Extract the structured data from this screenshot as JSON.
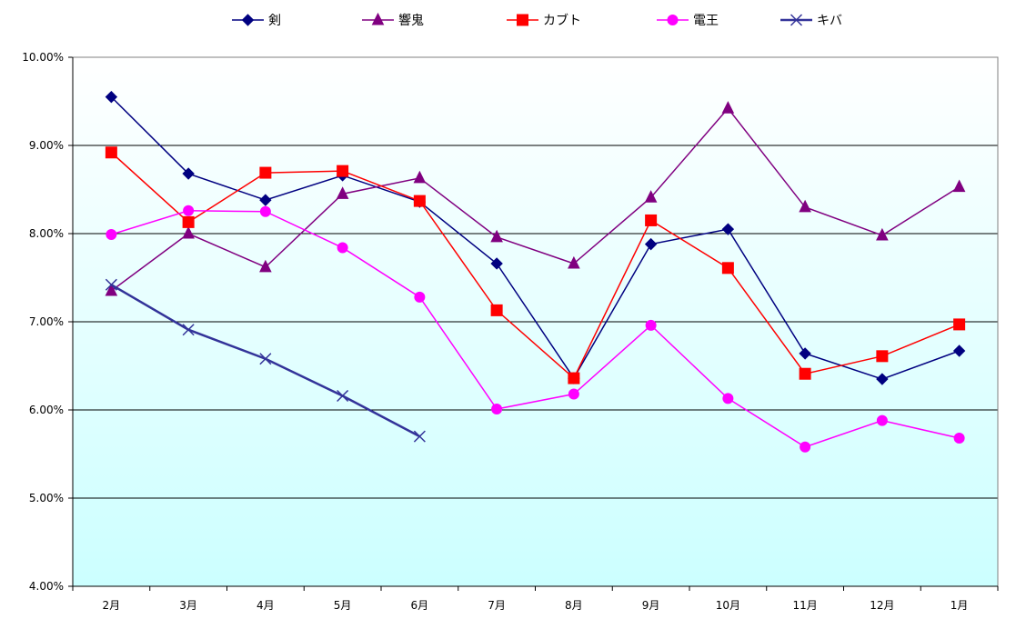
{
  "chart_data": {
    "type": "line",
    "title": "",
    "xlabel": "",
    "ylabel": "",
    "categories": [
      "2月",
      "3月",
      "4月",
      "5月",
      "6月",
      "7月",
      "8月",
      "9月",
      "10月",
      "11月",
      "12月",
      "1月"
    ],
    "ylim": [
      4.0,
      10.0
    ],
    "yticks": [
      4.0,
      5.0,
      6.0,
      7.0,
      8.0,
      9.0,
      10.0
    ],
    "ytick_labels": [
      "4.00%",
      "5.00%",
      "6.00%",
      "7.00%",
      "8.00%",
      "9.00%",
      "10.00%"
    ],
    "grid": true,
    "legend_position": "top",
    "plot_background": "gradient white (top) to light cyan (bottom)",
    "series": [
      {
        "name": "剣",
        "color": "#000080",
        "marker": "diamond",
        "values": [
          9.55,
          8.68,
          8.38,
          8.66,
          8.36,
          7.66,
          6.36,
          7.88,
          8.05,
          6.64,
          6.35,
          6.67
        ]
      },
      {
        "name": "響鬼",
        "color": "#800080",
        "marker": "triangle",
        "values": [
          7.35,
          8.0,
          7.62,
          8.45,
          8.63,
          7.96,
          7.66,
          8.41,
          9.42,
          8.3,
          7.98,
          8.53
        ]
      },
      {
        "name": "カブト",
        "color": "#ff0000",
        "marker": "square",
        "values": [
          8.92,
          8.13,
          8.69,
          8.71,
          8.37,
          7.13,
          6.36,
          8.15,
          7.61,
          6.41,
          6.61,
          6.97
        ]
      },
      {
        "name": "電王",
        "color": "#ff00ff",
        "marker": "circle",
        "values": [
          7.99,
          8.26,
          8.25,
          7.84,
          7.28,
          6.01,
          6.18,
          6.96,
          6.13,
          5.58,
          5.88,
          5.68
        ]
      },
      {
        "name": "キバ",
        "color": "#333399",
        "marker": "x",
        "values": [
          7.42,
          6.91,
          6.58,
          6.16,
          5.7,
          null,
          null,
          null,
          null,
          null,
          null,
          null
        ]
      }
    ]
  }
}
